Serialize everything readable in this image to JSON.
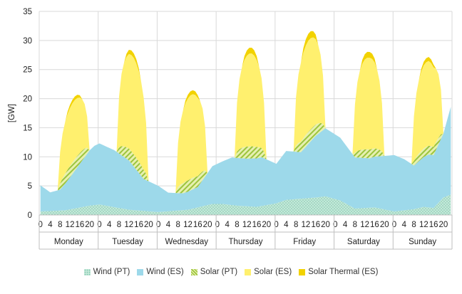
{
  "chart_data": {
    "type": "area",
    "stacked": true,
    "ylabel": "[GW]",
    "ylim": [
      0,
      35
    ],
    "yticks": [
      0,
      5,
      10,
      15,
      20,
      25,
      30,
      35
    ],
    "hour_tick_labels": [
      "0",
      "4",
      "8",
      "12",
      "16",
      "20"
    ],
    "hour_tick_values": [
      0,
      4,
      8,
      12,
      16,
      20
    ],
    "days": [
      "Monday",
      "Tuesday",
      "Wednesday",
      "Thursday",
      "Friday",
      "Saturday",
      "Sunday"
    ],
    "hours_per_day": 24,
    "x": "hour index (0-167) across the week; day k starts at 24*k",
    "legend_position": "bottom",
    "grid": {
      "horizontal": true,
      "vertical_day_separators": true
    },
    "series": [
      {
        "name": "Wind (PT)",
        "color": "#A8DCC8",
        "pattern": "dots",
        "knots": [
          [
            0,
            0.6
          ],
          [
            10,
            0.8
          ],
          [
            20,
            1.6
          ],
          [
            24,
            1.8
          ],
          [
            36,
            0.9
          ],
          [
            48,
            0.5
          ],
          [
            60,
            0.9
          ],
          [
            70,
            1.9
          ],
          [
            74,
            1.9
          ],
          [
            80,
            1.6
          ],
          [
            88,
            1.4
          ],
          [
            96,
            2.0
          ],
          [
            100,
            2.6
          ],
          [
            112,
            3.0
          ],
          [
            116,
            3.2
          ],
          [
            122,
            2.5
          ],
          [
            128,
            1.1
          ],
          [
            136,
            1.3
          ],
          [
            144,
            0.6
          ],
          [
            152,
            1.0
          ],
          [
            156,
            1.4
          ],
          [
            160,
            1.2
          ],
          [
            164,
            3.0
          ],
          [
            167,
            3.5
          ]
        ]
      },
      {
        "name": "Wind (ES)",
        "color": "#9DD9EA",
        "pattern": "solid",
        "knots": [
          [
            0,
            4.5
          ],
          [
            4,
            3.2
          ],
          [
            8,
            3.6
          ],
          [
            12,
            5.5
          ],
          [
            16,
            7.5
          ],
          [
            20,
            9.5
          ],
          [
            22,
            10.2
          ],
          [
            24,
            10.5
          ],
          [
            30,
            9.8
          ],
          [
            36,
            8.5
          ],
          [
            42,
            5.5
          ],
          [
            48,
            4.5
          ],
          [
            52,
            3.2
          ],
          [
            58,
            2.9
          ],
          [
            64,
            3.5
          ],
          [
            70,
            6.5
          ],
          [
            74,
            7.3
          ],
          [
            78,
            8.2
          ],
          [
            84,
            8.2
          ],
          [
            90,
            8.4
          ],
          [
            96,
            6.8
          ],
          [
            100,
            8.4
          ],
          [
            106,
            8.0
          ],
          [
            112,
            10.6
          ],
          [
            116,
            11.7
          ],
          [
            122,
            10.8
          ],
          [
            128,
            8.8
          ],
          [
            134,
            8.5
          ],
          [
            140,
            9.2
          ],
          [
            144,
            9.7
          ],
          [
            148,
            8.8
          ],
          [
            152,
            7.5
          ],
          [
            158,
            9.1
          ],
          [
            160,
            9.1
          ],
          [
            164,
            11.0
          ],
          [
            167,
            15.1
          ]
        ]
      },
      {
        "name": "Solar (PT)",
        "color": "#CDE08A",
        "pattern": "stripes",
        "peak": [
          2.1,
          2.2,
          2.1,
          2.2,
          2.2,
          1.6,
          1.6
        ]
      },
      {
        "name": "Solar (ES)",
        "color": "#FFF06E",
        "pattern": "solid",
        "peak": [
          10.2,
          16.6,
          14.4,
          16.0,
          15.7,
          15.8,
          14.6
        ]
      },
      {
        "name": "Solar Thermal (ES)",
        "color": "#F2D200",
        "pattern": "solid",
        "peak": [
          0.6,
          0.8,
          0.7,
          1.0,
          1.2,
          1.0,
          0.7
        ]
      }
    ]
  }
}
